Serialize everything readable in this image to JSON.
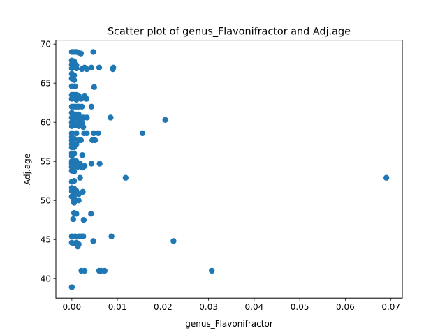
{
  "chart_data": {
    "type": "scatter",
    "title": "Scatter plot of genus_Flavonifractor and Adj.age",
    "xlabel": "genus_Flavonifractor",
    "ylabel": "Adj.age",
    "xlim": [
      -0.0035,
      0.0725
    ],
    "ylim": [
      37.5,
      70.5
    ],
    "xticks": [
      0.0,
      0.01,
      0.02,
      0.03,
      0.04,
      0.05,
      0.06,
      0.07
    ],
    "xtick_labels": [
      "0.00",
      "0.01",
      "0.02",
      "0.03",
      "0.04",
      "0.05",
      "0.06",
      "0.07"
    ],
    "yticks": [
      40,
      45,
      50,
      55,
      60,
      65,
      70
    ],
    "ytick_labels": [
      "40",
      "45",
      "50",
      "55",
      "60",
      "65",
      "70"
    ],
    "grid": false,
    "marker_color": "#1f77b4",
    "points": [
      {
        "x": 0.0,
        "y": 69.0
      },
      {
        "x": 0.0005,
        "y": 69.0
      },
      {
        "x": 0.001,
        "y": 69.0
      },
      {
        "x": 0.0015,
        "y": 68.9
      },
      {
        "x": 0.002,
        "y": 68.8
      },
      {
        "x": 0.0047,
        "y": 69.0
      },
      {
        "x": 0.0,
        "y": 67.9
      },
      {
        "x": 0.0005,
        "y": 67.8
      },
      {
        "x": 0.0,
        "y": 67.4
      },
      {
        "x": 0.0005,
        "y": 67.2
      },
      {
        "x": 0.001,
        "y": 67.3
      },
      {
        "x": 0.0,
        "y": 66.9
      },
      {
        "x": 0.001,
        "y": 66.9
      },
      {
        "x": 0.0022,
        "y": 66.8
      },
      {
        "x": 0.0028,
        "y": 67.0
      },
      {
        "x": 0.0033,
        "y": 66.8
      },
      {
        "x": 0.0043,
        "y": 67.0
      },
      {
        "x": 0.006,
        "y": 67.0
      },
      {
        "x": 0.009,
        "y": 66.8
      },
      {
        "x": 0.0091,
        "y": 67.0
      },
      {
        "x": 0.0,
        "y": 66.2
      },
      {
        "x": 0.0005,
        "y": 66.0
      },
      {
        "x": 0.0,
        "y": 65.6
      },
      {
        "x": 0.0005,
        "y": 65.4
      },
      {
        "x": 0.0,
        "y": 64.6
      },
      {
        "x": 0.0007,
        "y": 64.6
      },
      {
        "x": 0.0049,
        "y": 64.5
      },
      {
        "x": 0.0,
        "y": 63.5
      },
      {
        "x": 0.0005,
        "y": 63.5
      },
      {
        "x": 0.001,
        "y": 63.5
      },
      {
        "x": 0.0015,
        "y": 63.4
      },
      {
        "x": 0.0028,
        "y": 63.4
      },
      {
        "x": 0.0,
        "y": 63.0
      },
      {
        "x": 0.001,
        "y": 62.9
      },
      {
        "x": 0.002,
        "y": 63.0
      },
      {
        "x": 0.0032,
        "y": 63.0
      },
      {
        "x": 0.0,
        "y": 62.0
      },
      {
        "x": 0.0005,
        "y": 62.0
      },
      {
        "x": 0.001,
        "y": 62.0
      },
      {
        "x": 0.0015,
        "y": 62.0
      },
      {
        "x": 0.0022,
        "y": 62.0
      },
      {
        "x": 0.0043,
        "y": 62.0
      },
      {
        "x": 0.0,
        "y": 61.2
      },
      {
        "x": 0.0005,
        "y": 61.0
      },
      {
        "x": 0.001,
        "y": 61.0
      },
      {
        "x": 0.0015,
        "y": 61.0
      },
      {
        "x": 0.0,
        "y": 60.6
      },
      {
        "x": 0.0007,
        "y": 60.6
      },
      {
        "x": 0.0015,
        "y": 60.5
      },
      {
        "x": 0.0025,
        "y": 60.6
      },
      {
        "x": 0.0033,
        "y": 60.6
      },
      {
        "x": 0.0085,
        "y": 60.6
      },
      {
        "x": 0.0205,
        "y": 60.3
      },
      {
        "x": 0.0,
        "y": 60.0
      },
      {
        "x": 0.0005,
        "y": 60.0
      },
      {
        "x": 0.0015,
        "y": 60.0
      },
      {
        "x": 0.0022,
        "y": 60.0
      },
      {
        "x": 0.0,
        "y": 59.5
      },
      {
        "x": 0.0007,
        "y": 59.6
      },
      {
        "x": 0.0015,
        "y": 59.5
      },
      {
        "x": 0.0025,
        "y": 59.4
      },
      {
        "x": 0.0,
        "y": 58.6
      },
      {
        "x": 0.001,
        "y": 58.6
      },
      {
        "x": 0.0027,
        "y": 58.6
      },
      {
        "x": 0.0033,
        "y": 58.6
      },
      {
        "x": 0.0048,
        "y": 58.6
      },
      {
        "x": 0.0058,
        "y": 58.6
      },
      {
        "x": 0.0155,
        "y": 58.6
      },
      {
        "x": 0.0,
        "y": 58.1
      },
      {
        "x": 0.0005,
        "y": 57.9
      },
      {
        "x": 0.0,
        "y": 57.7
      },
      {
        "x": 0.0015,
        "y": 57.7
      },
      {
        "x": 0.002,
        "y": 57.7
      },
      {
        "x": 0.0045,
        "y": 57.7
      },
      {
        "x": 0.0051,
        "y": 57.7
      },
      {
        "x": 0.0,
        "y": 57.2
      },
      {
        "x": 0.0005,
        "y": 57.2
      },
      {
        "x": 0.001,
        "y": 57.2
      },
      {
        "x": 0.0,
        "y": 56.8
      },
      {
        "x": 0.0005,
        "y": 56.8
      },
      {
        "x": 0.0,
        "y": 56.0
      },
      {
        "x": 0.0005,
        "y": 56.0
      },
      {
        "x": 0.0,
        "y": 55.7
      },
      {
        "x": 0.0023,
        "y": 55.8
      },
      {
        "x": 0.0,
        "y": 55.0
      },
      {
        "x": 0.0005,
        "y": 55.0
      },
      {
        "x": 0.001,
        "y": 55.0
      },
      {
        "x": 0.0,
        "y": 54.7
      },
      {
        "x": 0.001,
        "y": 54.7
      },
      {
        "x": 0.0015,
        "y": 54.7
      },
      {
        "x": 0.0018,
        "y": 54.7
      },
      {
        "x": 0.0043,
        "y": 54.7
      },
      {
        "x": 0.0061,
        "y": 54.7
      },
      {
        "x": 0.0,
        "y": 54.3
      },
      {
        "x": 0.0005,
        "y": 54.3
      },
      {
        "x": 0.0013,
        "y": 54.3
      },
      {
        "x": 0.0023,
        "y": 54.2
      },
      {
        "x": 0.0028,
        "y": 54.4
      },
      {
        "x": 0.0,
        "y": 53.8
      },
      {
        "x": 0.0005,
        "y": 53.7
      },
      {
        "x": 0.0018,
        "y": 52.9
      },
      {
        "x": 0.0118,
        "y": 52.9
      },
      {
        "x": 0.069,
        "y": 52.9
      },
      {
        "x": 0.0,
        "y": 52.4
      },
      {
        "x": 0.0005,
        "y": 52.5
      },
      {
        "x": 0.0,
        "y": 51.6
      },
      {
        "x": 0.0005,
        "y": 51.5
      },
      {
        "x": 0.0,
        "y": 51.2
      },
      {
        "x": 0.001,
        "y": 51.2
      },
      {
        "x": 0.0024,
        "y": 51.1
      },
      {
        "x": 0.0005,
        "y": 50.7
      },
      {
        "x": 0.0015,
        "y": 50.8
      },
      {
        "x": 0.0,
        "y": 50.5
      },
      {
        "x": 0.0005,
        "y": 50.3
      },
      {
        "x": 0.0005,
        "y": 50.0
      },
      {
        "x": 0.0015,
        "y": 50.0
      },
      {
        "x": 0.0005,
        "y": 49.7
      },
      {
        "x": 0.0005,
        "y": 48.4
      },
      {
        "x": 0.001,
        "y": 48.3
      },
      {
        "x": 0.0042,
        "y": 48.3
      },
      {
        "x": 0.0003,
        "y": 47.6
      },
      {
        "x": 0.0026,
        "y": 47.5
      },
      {
        "x": 0.0,
        "y": 45.4
      },
      {
        "x": 0.0007,
        "y": 45.4
      },
      {
        "x": 0.0015,
        "y": 45.4
      },
      {
        "x": 0.0021,
        "y": 45.4
      },
      {
        "x": 0.0025,
        "y": 45.4
      },
      {
        "x": 0.0087,
        "y": 45.4
      },
      {
        "x": 0.0,
        "y": 44.6
      },
      {
        "x": 0.0005,
        "y": 44.5
      },
      {
        "x": 0.001,
        "y": 44.6
      },
      {
        "x": 0.0015,
        "y": 44.4
      },
      {
        "x": 0.0013,
        "y": 44.1
      },
      {
        "x": 0.0047,
        "y": 44.8
      },
      {
        "x": 0.0223,
        "y": 44.8
      },
      {
        "x": 0.0021,
        "y": 41.0
      },
      {
        "x": 0.0028,
        "y": 41.0
      },
      {
        "x": 0.006,
        "y": 41.0
      },
      {
        "x": 0.0064,
        "y": 41.0
      },
      {
        "x": 0.0072,
        "y": 41.0
      },
      {
        "x": 0.0307,
        "y": 41.0
      },
      {
        "x": 0.0,
        "y": 38.9
      }
    ]
  }
}
